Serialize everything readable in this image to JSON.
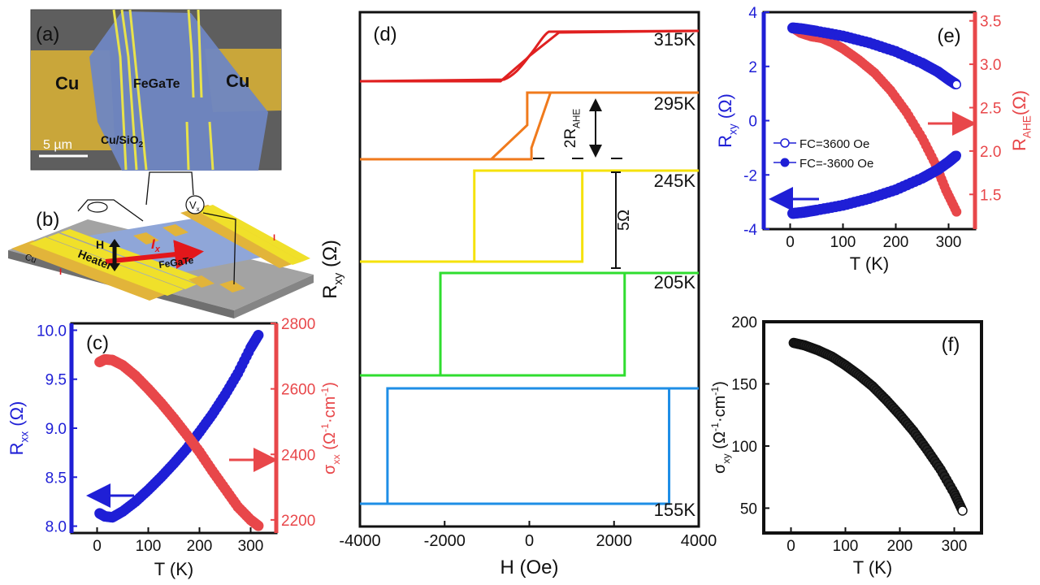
{
  "figure": {
    "panel_a": {
      "label": "(a)",
      "left_pad": "Cu",
      "right_pad": "Cu",
      "flake": "FeGaTe",
      "substrate": "Cu/SiO",
      "substrate_sub": "2",
      "scale_bar": "5 µm"
    },
    "panel_b": {
      "label": "(b)",
      "cu": "Cu",
      "heater": "Heater",
      "h_label": "H",
      "current": "I",
      "current_sub": "x",
      "flake": "FeGaTe",
      "vx": "V",
      "vx_sub": "x",
      "i_left": "I",
      "i_right": "I"
    }
  },
  "chart_data": [
    {
      "panel": "(c)",
      "type": "scatter",
      "xlabel": "T (K)",
      "ylabel_left": "R",
      "ylabel_left_sub": "xx",
      "ylabel_left_unit": " (Ω)",
      "ylabel_right": "σ",
      "ylabel_right_sub": "xx",
      "ylabel_right_unit_pre": " (Ω",
      "ylabel_right_unit_sup1": "-1",
      "ylabel_right_unit_mid": "·cm",
      "ylabel_right_unit_sup2": "-1",
      "ylabel_right_unit_post": ")",
      "xlim": [
        -50,
        350
      ],
      "ylim_left": [
        7.93,
        10.07
      ],
      "ylim_right": [
        2160,
        2800
      ],
      "xticks": [
        0,
        100,
        200,
        300
      ],
      "yticks_left": [
        8.0,
        8.5,
        9.0,
        9.5,
        10.0
      ],
      "yticks_right": [
        2200,
        2400,
        2600,
        2800
      ],
      "colors": {
        "left": "#1f1fd6",
        "right": "#e8474a"
      },
      "series": [
        {
          "name": "Rxx",
          "axis": "left",
          "color": "#1f1fd6",
          "x": [
            5,
            15,
            30,
            50,
            75,
            100,
            125,
            150,
            175,
            200,
            225,
            250,
            275,
            300,
            315
          ],
          "y": [
            8.13,
            8.1,
            8.09,
            8.15,
            8.25,
            8.37,
            8.5,
            8.64,
            8.79,
            8.96,
            9.14,
            9.34,
            9.56,
            9.82,
            9.95
          ]
        },
        {
          "name": "sigma_xx",
          "axis": "right",
          "color": "#e8474a",
          "x": [
            5,
            15,
            30,
            50,
            75,
            100,
            125,
            150,
            175,
            200,
            225,
            250,
            275,
            300,
            315
          ],
          "y": [
            2682,
            2690,
            2688,
            2672,
            2640,
            2600,
            2557,
            2510,
            2460,
            2408,
            2350,
            2295,
            2240,
            2200,
            2182
          ]
        }
      ]
    },
    {
      "panel": "(d)",
      "type": "line",
      "xlabel": "H (Oe)",
      "ylabel": "R",
      "ylabel_sub": "xy",
      "ylabel_unit": " (Ω)",
      "xlim": [
        -4000,
        4000
      ],
      "xticks": [
        -4000,
        -2000,
        0,
        2000,
        4000
      ],
      "scale_bar_label": "5Ω",
      "rahe_label_pre": "2R",
      "rahe_label_sub": "AHE",
      "series": [
        {
          "name": "315K",
          "color": "#e02020",
          "hysteresis": {
            "low_end": -600,
            "mid": 0,
            "high_start": 700,
            "width": 80
          }
        },
        {
          "name": "295K",
          "color": "#f07a1c",
          "hysteresis": {
            "up_switch": 50,
            "up_ramp_end": 500,
            "down_switch": -50,
            "down_ramp_end": -900
          }
        },
        {
          "name": "245K",
          "color": "#f5e20a",
          "hysteresis": {
            "coercive_up": 1250,
            "coercive_down": -1300
          }
        },
        {
          "name": "205K",
          "color": "#2fdd2f",
          "hysteresis": {
            "coercive_up": 2250,
            "coercive_down": -2100
          }
        },
        {
          "name": "155K",
          "color": "#1e8ee6",
          "hysteresis": {
            "coercive_up": 3300,
            "coercive_down": -3350
          }
        }
      ]
    },
    {
      "panel": "(e)",
      "type": "scatter",
      "xlabel": "T (K)",
      "ylabel_left": "R",
      "ylabel_left_sub": "xy",
      "ylabel_left_unit": " (Ω)",
      "ylabel_right": "R",
      "ylabel_right_sub": "AHE",
      "ylabel_right_unit": "(Ω)",
      "xlim": [
        -50,
        350
      ],
      "ylim_left": [
        -4,
        4
      ],
      "ylim_right": [
        1.1,
        3.6
      ],
      "xticks": [
        0,
        100,
        200,
        300
      ],
      "yticks_left": [
        -4,
        -2,
        0,
        2,
        4
      ],
      "yticks_right": [
        1.5,
        2.0,
        2.5,
        3.0,
        3.5
      ],
      "legend": [
        {
          "label": "FC=3600 Oe",
          "marker": "open"
        },
        {
          "label": "FC=-3600 Oe",
          "marker": "filled"
        }
      ],
      "colors": {
        "left": "#1f1fd6",
        "right": "#e8474a"
      },
      "series": [
        {
          "name": "FC=3600 Oe",
          "axis": "left",
          "color": "#1f1fd6",
          "x": [
            5,
            25,
            50,
            100,
            150,
            200,
            250,
            280,
            300,
            315
          ],
          "y": [
            3.42,
            3.38,
            3.3,
            3.12,
            2.87,
            2.55,
            2.12,
            1.8,
            1.52,
            1.33
          ]
        },
        {
          "name": "FC=-3600 Oe",
          "axis": "left",
          "color": "#1f1fd6",
          "x": [
            5,
            25,
            50,
            100,
            150,
            200,
            250,
            280,
            300,
            315
          ],
          "y": [
            -3.42,
            -3.38,
            -3.3,
            -3.12,
            -2.87,
            -2.55,
            -2.12,
            -1.8,
            -1.52,
            -1.28
          ]
        },
        {
          "name": "RAHE",
          "axis": "right",
          "color": "#e8474a",
          "x": [
            5,
            20,
            40,
            60,
            80,
            100,
            130,
            160,
            190,
            220,
            250,
            275,
            295,
            315
          ],
          "y": [
            3.42,
            3.36,
            3.32,
            3.3,
            3.25,
            3.18,
            3.05,
            2.9,
            2.7,
            2.45,
            2.15,
            1.85,
            1.55,
            1.3
          ]
        }
      ]
    },
    {
      "panel": "(f)",
      "type": "scatter",
      "xlabel": "T (K)",
      "ylabel": "σ",
      "ylabel_sub": "xy",
      "ylabel_unit_pre": " (Ω",
      "ylabel_unit_sup1": "-1",
      "ylabel_unit_mid": "·cm",
      "ylabel_unit_sup2": "-1",
      "ylabel_unit_post": ")",
      "xlim": [
        -50,
        350
      ],
      "ylim": [
        30,
        200
      ],
      "xticks": [
        0,
        100,
        200,
        300
      ],
      "yticks": [
        50,
        100,
        150,
        200
      ],
      "color": "#111111",
      "x": [
        5,
        25,
        50,
        75,
        100,
        125,
        150,
        175,
        200,
        225,
        250,
        275,
        300,
        315
      ],
      "y": [
        183,
        181,
        177,
        172,
        165,
        157,
        148,
        137,
        125,
        112,
        97,
        81,
        62,
        48
      ]
    }
  ]
}
